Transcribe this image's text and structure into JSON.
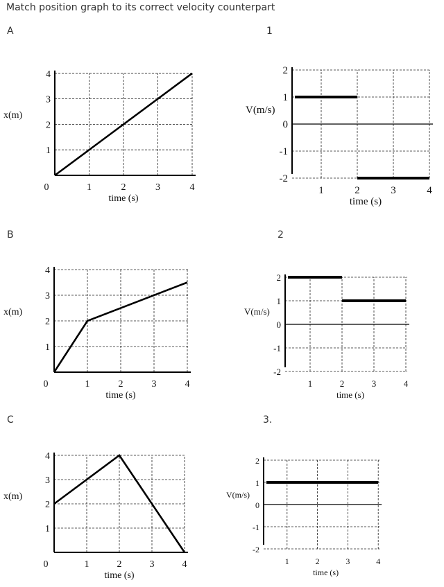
{
  "title": "Match position graph to its correct velocity counterpart",
  "position_labels": [
    "A",
    "B",
    "C"
  ],
  "velocity_labels": [
    "1",
    "2",
    "3."
  ],
  "chart_data": [
    {
      "id": "A",
      "type": "line",
      "xlabel": "time (s)",
      "ylabel": "x(m)",
      "xlim": [
        0,
        4
      ],
      "ylim": [
        0,
        4
      ],
      "xticks": [
        0,
        1,
        2,
        3,
        4
      ],
      "yticks": [
        1,
        2,
        3,
        4
      ],
      "grid": true,
      "series": [
        {
          "x": [
            0,
            4
          ],
          "y": [
            0,
            4
          ]
        }
      ]
    },
    {
      "id": "B",
      "type": "line",
      "xlabel": "time (s)",
      "ylabel": "x(m)",
      "xlim": [
        0,
        4
      ],
      "ylim": [
        0,
        4
      ],
      "xticks": [
        0,
        1,
        2,
        3,
        4
      ],
      "yticks": [
        1,
        2,
        3,
        4
      ],
      "grid": true,
      "series": [
        {
          "x": [
            0,
            1,
            4
          ],
          "y": [
            0,
            2,
            3.5
          ]
        }
      ]
    },
    {
      "id": "C",
      "type": "line",
      "xlabel": "time (s)",
      "ylabel": "x(m)",
      "xlim": [
        0,
        4
      ],
      "ylim": [
        0,
        4
      ],
      "xticks": [
        0,
        1,
        2,
        3,
        4
      ],
      "yticks": [
        1,
        2,
        3,
        4
      ],
      "grid": true,
      "series": [
        {
          "x": [
            0,
            2,
            4
          ],
          "y": [
            2,
            4,
            0
          ]
        }
      ]
    },
    {
      "id": "1",
      "type": "line",
      "xlabel": "time (s)",
      "ylabel": "V(m/s)",
      "xlim": [
        0,
        4
      ],
      "ylim": [
        -2,
        2
      ],
      "xticks": [
        1,
        2,
        3,
        4
      ],
      "yticks": [
        2,
        1,
        0,
        -1,
        -2
      ],
      "grid": true,
      "segments": [
        {
          "x": [
            0,
            2
          ],
          "y": [
            1,
            1
          ]
        },
        {
          "x": [
            2,
            4
          ],
          "y": [
            -2,
            -2
          ]
        }
      ]
    },
    {
      "id": "2",
      "type": "line",
      "xlabel": "time (s)",
      "ylabel": "V(m/s)",
      "xlim": [
        0,
        4
      ],
      "ylim": [
        -2,
        2
      ],
      "xticks": [
        1,
        2,
        3,
        4
      ],
      "yticks": [
        2,
        1,
        0,
        -1,
        -2
      ],
      "grid": true,
      "segments": [
        {
          "x": [
            0,
            2
          ],
          "y": [
            2,
            2
          ]
        },
        {
          "x": [
            2,
            4
          ],
          "y": [
            1,
            1
          ]
        }
      ]
    },
    {
      "id": "3",
      "type": "line",
      "xlabel": "time (s)",
      "ylabel": "V(m/s)",
      "xlim": [
        0,
        4
      ],
      "ylim": [
        -2,
        2
      ],
      "xticks": [
        1,
        2,
        3,
        4
      ],
      "yticks": [
        2,
        1,
        0,
        -1,
        -2
      ],
      "grid": true,
      "segments": [
        {
          "x": [
            0,
            4
          ],
          "y": [
            1,
            1
          ]
        }
      ]
    }
  ]
}
